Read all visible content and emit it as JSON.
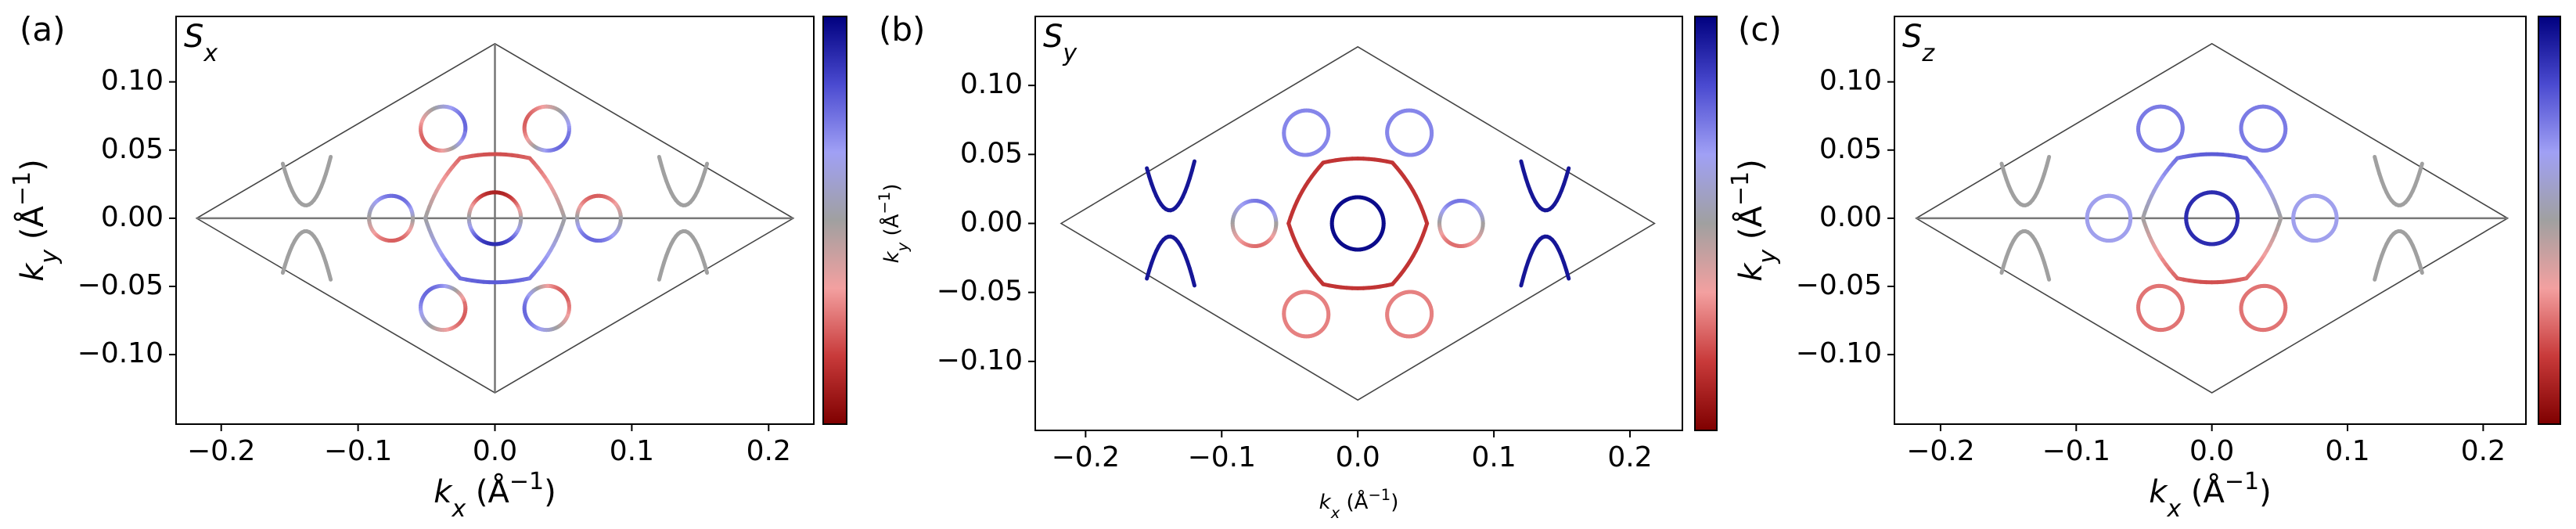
{
  "chart_data": [
    {
      "type": "contour",
      "panel_label": "(a)",
      "title": {
        "base": "S",
        "sub": "x"
      },
      "xlabel": {
        "base": "k",
        "sub": "x",
        "unit": " (Å",
        "sup": "−1",
        "close": ")"
      },
      "ylabel": {
        "base": "k",
        "sub": "y",
        "unit": " (Å",
        "sup": "−1",
        "close": ")"
      },
      "xlim": [
        -0.233,
        0.233
      ],
      "ylim": [
        -0.151,
        0.148
      ],
      "xticks": [
        {
          "value": -0.2,
          "label": "−0.2"
        },
        {
          "value": -0.1,
          "label": "−0.1"
        },
        {
          "value": 0,
          "label": "0.0"
        },
        0.1,
        0.2
      ],
      "yticks": [
        {
          "value": -0.1,
          "label": "−0.10"
        },
        {
          "value": -0.05,
          "label": "−0.05"
        },
        {
          "value": 0,
          "label": "0.00"
        },
        0.05,
        {
          "value": 0.1,
          "label": "0.10"
        }
      ],
      "colormap": [
        "#7f0000",
        "#c83a3a",
        "#f3a0a0",
        "#a0a0a0",
        "#a0a0f5",
        "#4a4ad0",
        "#00007f"
      ]
    },
    {
      "type": "contour",
      "panel_label": "(b)",
      "title": {
        "base": "S",
        "sub": "y"
      },
      "xlabel": {
        "base": "k",
        "sub": "x",
        "unit": "  (Å",
        "sup": "−1",
        "close": ")"
      },
      "ylabel": {
        "base": "k",
        "sub": "y",
        "unit": "  (Å",
        "sup": "−1",
        "close": ")"
      },
      "xlim": [
        -0.237,
        0.2385
      ],
      "ylim": [
        -0.15,
        0.15
      ],
      "xticks": [
        {
          "value": -0.2,
          "label": "−0.2"
        },
        {
          "value": -0.1,
          "label": "−0.1"
        },
        {
          "value": 0,
          "label": "0.0"
        },
        0.1,
        0.2
      ],
      "yticks": [
        {
          "value": -0.1,
          "label": "−0.10"
        },
        {
          "value": -0.05,
          "label": "−0.05"
        },
        {
          "value": 0,
          "label": "0.00"
        },
        0.05,
        {
          "value": 0.1,
          "label": "0.10"
        }
      ],
      "colormap": [
        "#7f0000",
        "#c83a3a",
        "#f3a0a0",
        "#a0a0a0",
        "#a0a0f5",
        "#4a4ad0",
        "#00007f"
      ]
    },
    {
      "type": "contour",
      "panel_label": "(c)",
      "title": {
        "base": "S",
        "sub": "z"
      },
      "xlabel": {
        "base": "k",
        "sub": "x",
        "unit": " (Å",
        "sup": "−1",
        "close": ")"
      },
      "ylabel": {
        "base": "k",
        "sub": "y",
        "unit": " (Å",
        "sup": "−1",
        "close": ")"
      },
      "xlim": [
        -0.234,
        0.2315
      ],
      "ylim": [
        -0.151,
        0.148
      ],
      "xticks": [
        {
          "value": -0.2,
          "label": "−0.2"
        },
        {
          "value": -0.1,
          "label": "−0.1"
        },
        {
          "value": 0,
          "label": "0.0"
        },
        0.1,
        0.2
      ],
      "yticks": [
        {
          "value": -0.1,
          "label": "−0.10"
        },
        {
          "value": -0.05,
          "label": "−0.05"
        },
        {
          "value": 0,
          "label": "0.00"
        },
        0.05,
        {
          "value": 0.1,
          "label": "0.10"
        }
      ],
      "colormap": [
        "#7f0000",
        "#c83a3a",
        "#f3a0a0",
        "#a0a0a0",
        "#a0a0f5",
        "#4a4ad0",
        "#00007f"
      ]
    }
  ]
}
